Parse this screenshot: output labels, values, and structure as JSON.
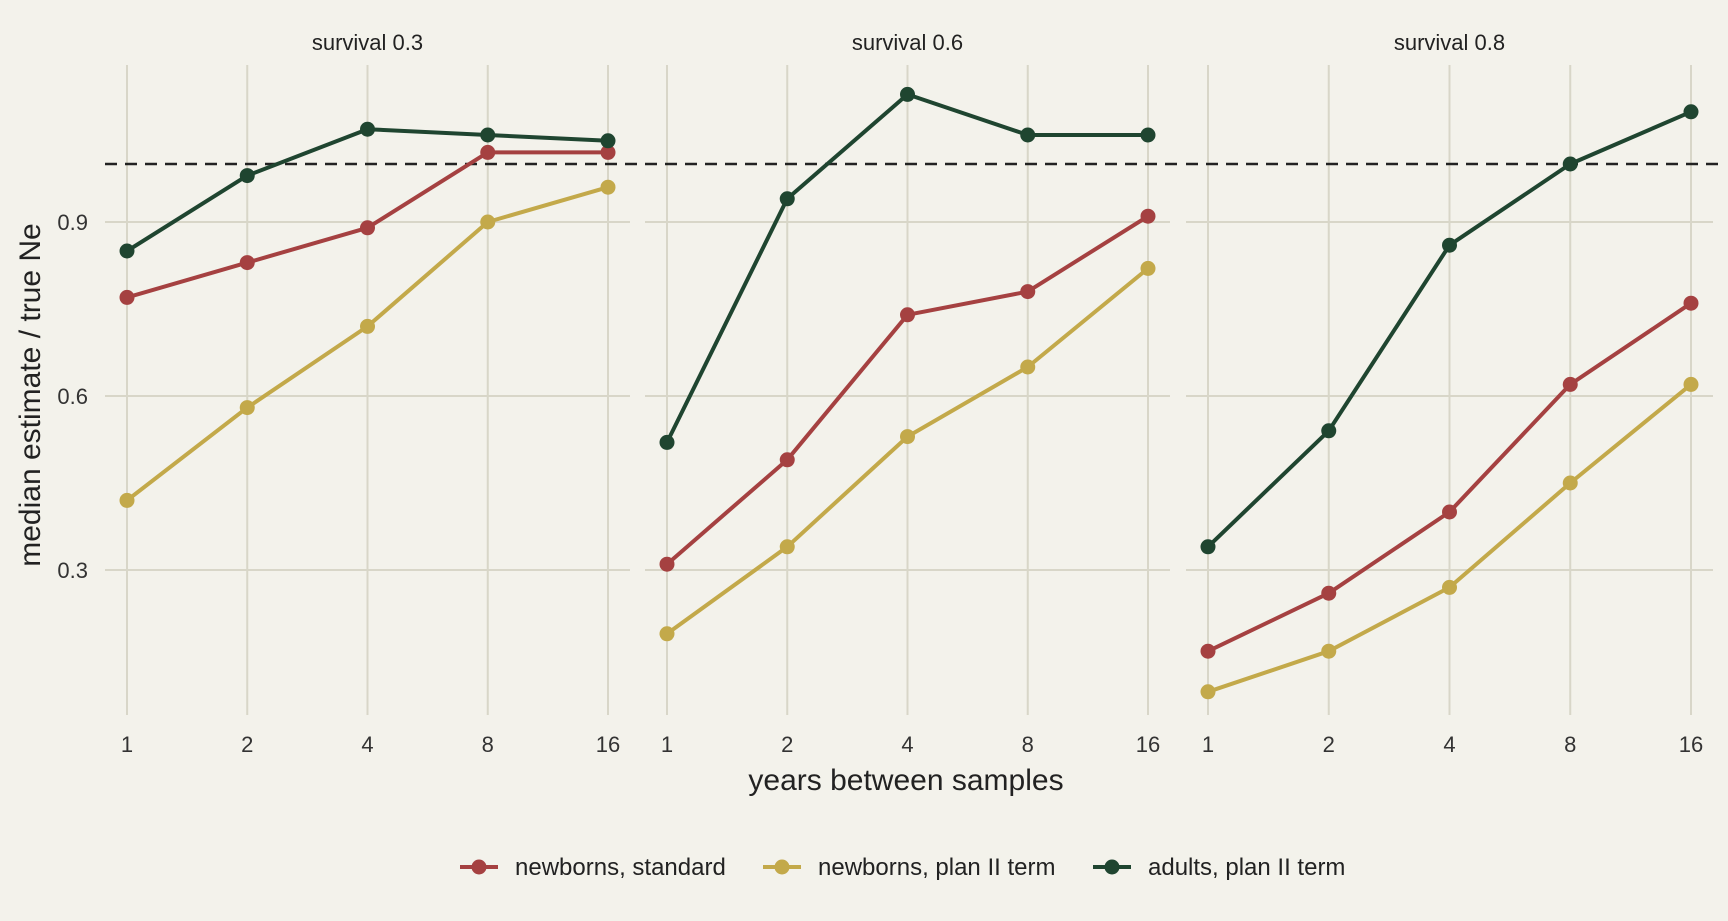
{
  "chart_data": {
    "type": "line",
    "xlabel": "years between samples",
    "ylabel": "median estimate / true Ne",
    "x": [
      1,
      2,
      4,
      8,
      16
    ],
    "x_scale": "log2",
    "ylim": [
      0.05,
      1.15
    ],
    "yticks": [
      0.3,
      0.6,
      0.9
    ],
    "reference_line": 1.0,
    "grid": true,
    "legend_position": "bottom",
    "colors": {
      "newborns, standard": "#a54141",
      "newborns, plan II term": "#c3a94a",
      "adults, plan II term": "#1f4530"
    },
    "facets": [
      {
        "title": "survival 0.3",
        "series": [
          {
            "name": "newborns, standard",
            "values": [
              0.77,
              0.83,
              0.89,
              1.02,
              1.02
            ]
          },
          {
            "name": "newborns, plan II term",
            "values": [
              0.42,
              0.58,
              0.72,
              0.9,
              0.96
            ]
          },
          {
            "name": "adults, plan II term",
            "values": [
              0.85,
              0.98,
              1.06,
              1.05,
              1.04
            ]
          }
        ]
      },
      {
        "title": "survival 0.6",
        "series": [
          {
            "name": "newborns, standard",
            "values": [
              0.31,
              0.49,
              0.74,
              0.78,
              0.91
            ]
          },
          {
            "name": "newborns, plan II term",
            "values": [
              0.19,
              0.34,
              0.53,
              0.65,
              0.82
            ]
          },
          {
            "name": "adults, plan II term",
            "values": [
              0.52,
              0.94,
              1.12,
              1.05,
              1.05
            ]
          }
        ]
      },
      {
        "title": "survival 0.8",
        "series": [
          {
            "name": "newborns, standard",
            "values": [
              0.16,
              0.26,
              0.4,
              0.62,
              0.76
            ]
          },
          {
            "name": "newborns, plan II term",
            "values": [
              0.09,
              0.16,
              0.27,
              0.45,
              0.62
            ]
          },
          {
            "name": "adults, plan II term",
            "values": [
              0.34,
              0.54,
              0.86,
              1.0,
              1.09
            ]
          }
        ]
      }
    ],
    "legend": [
      "newborns, standard",
      "newborns, plan II term",
      "adults, plan II term"
    ]
  }
}
